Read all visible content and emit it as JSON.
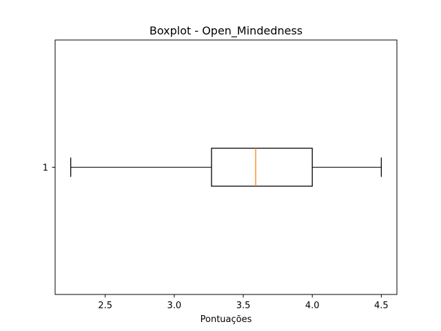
{
  "chart_data": {
    "type": "boxplot",
    "orientation": "horizontal",
    "title": "Boxplot - Open_Mindedness",
    "xlabel": "Pontuações",
    "ylabel": "",
    "xlim": [
      2.137,
      4.613
    ],
    "xticks": [
      2.5,
      3.0,
      3.5,
      4.0,
      4.5
    ],
    "xtick_labels": [
      "2.5",
      "3.0",
      "3.5",
      "4.0",
      "4.5"
    ],
    "categories": [
      "1"
    ],
    "boxes": [
      {
        "category": "1",
        "whisker_low": 2.25,
        "q1": 3.27,
        "median": 3.59,
        "q3": 4.0,
        "whisker_high": 4.5
      }
    ],
    "grid": false,
    "colors": {
      "box": "#000000",
      "median": "#ff7f0e"
    }
  }
}
